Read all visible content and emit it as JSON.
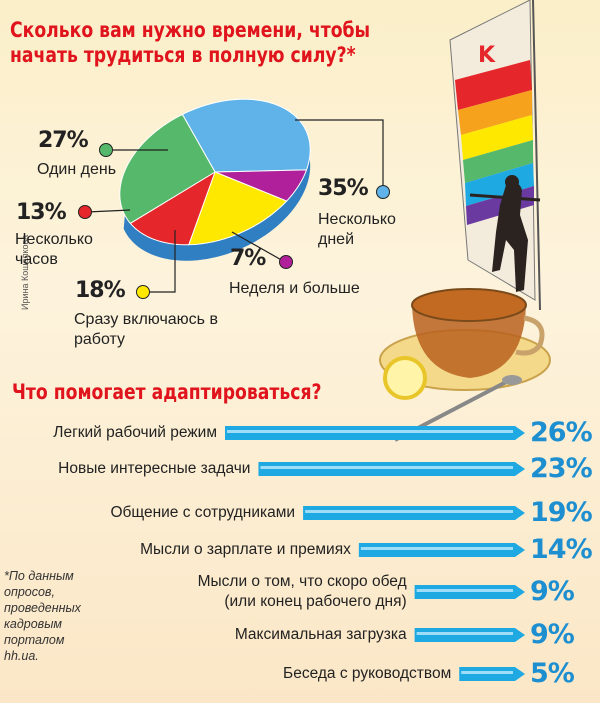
{
  "title": "Сколько вам нужно времени, чтобы\nначать трудиться в полную силу?*",
  "subtitle": "Что помогает адаптироваться?",
  "credit": "Ирина Кошелкова",
  "footnote": "*По данным\nопросов,\nпроведенных\nкадровым\nпорталом\nhh.ua.",
  "chart_data": [
    {
      "type": "pie",
      "title": "Сколько вам нужно времени, чтобы начать трудиться в полную силу?*",
      "slices": [
        {
          "label": "Несколько дней",
          "value": 35,
          "pct": "35%",
          "color": "#5fb3e8"
        },
        {
          "label": "Неделя и больше",
          "value": 7,
          "pct": "7%",
          "color": "#b0209a"
        },
        {
          "label": "Сразу включаюсь в работу",
          "value": 18,
          "pct": "18%",
          "color": "#ffe800"
        },
        {
          "label": "Несколько часов",
          "value": 13,
          "pct": "13%",
          "color": "#e5262b"
        },
        {
          "label": "Один день",
          "value": 27,
          "pct": "27%",
          "color": "#55b86a"
        }
      ]
    },
    {
      "type": "bar",
      "title": "Что помогает адаптироваться?",
      "categories": [
        "Легкий рабочий режим",
        "Новые интересные задачи",
        "Общение с сотрудниками",
        "Мысли о зарплате и премиях",
        "Мысли о том, что скоро обед\n(или конец рабочего дня)",
        "Максимальная загрузка",
        "Беседа с руководством"
      ],
      "values": [
        26,
        23,
        19,
        14,
        9,
        9,
        5
      ],
      "value_labels": [
        "26%",
        "23%",
        "19%",
        "14%",
        "9%",
        "9%",
        "5%"
      ],
      "color": "#1fa9e3"
    }
  ],
  "colors": {
    "title": "#e0141c",
    "bar": "#1fa9e3",
    "bar_highlight": "#9fdcf7"
  },
  "icons": [
    "windsurfer-illustration",
    "tea-cup-illustration",
    "lemon-slice-icon",
    "spoon-icon"
  ]
}
